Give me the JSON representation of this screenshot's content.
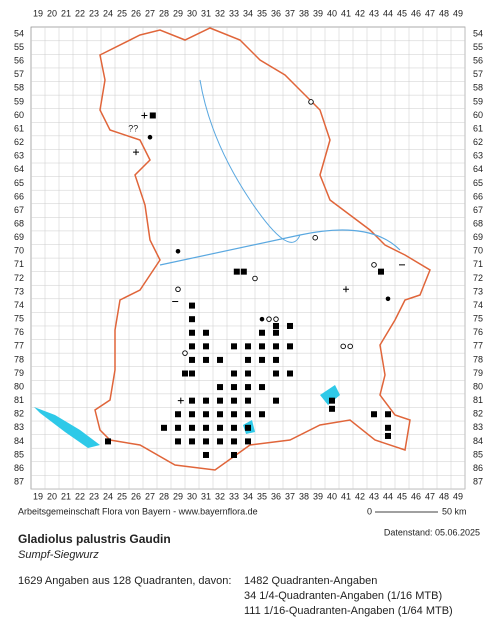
{
  "map": {
    "columns": [
      19,
      20,
      21,
      22,
      23,
      24,
      25,
      26,
      27,
      28,
      29,
      30,
      31,
      32,
      33,
      34,
      35,
      36,
      37,
      38,
      39,
      40,
      41,
      42,
      43,
      44,
      45,
      46,
      47,
      48,
      49
    ],
    "rows": [
      54,
      55,
      56,
      57,
      58,
      59,
      60,
      61,
      62,
      63,
      64,
      65,
      66,
      67,
      68,
      69,
      70,
      71,
      72,
      73,
      74,
      75,
      76,
      77,
      78,
      79,
      80,
      81,
      82,
      83,
      84,
      85,
      86,
      87
    ],
    "squares": [
      [
        27.2,
        60
      ],
      [
        33.2,
        71.5
      ],
      [
        33.7,
        71.5
      ],
      [
        43.5,
        71.5
      ],
      [
        30,
        74
      ],
      [
        30,
        75
      ],
      [
        36,
        75.5
      ],
      [
        30,
        76
      ],
      [
        31,
        76
      ],
      [
        35,
        76
      ],
      [
        36,
        76
      ],
      [
        37,
        75.5
      ],
      [
        30,
        77
      ],
      [
        31,
        77
      ],
      [
        33,
        77
      ],
      [
        34,
        77
      ],
      [
        35,
        77
      ],
      [
        36,
        77
      ],
      [
        37,
        77
      ],
      [
        30,
        78
      ],
      [
        31,
        78
      ],
      [
        32,
        78
      ],
      [
        34,
        78
      ],
      [
        35,
        78
      ],
      [
        36,
        78
      ],
      [
        37,
        79
      ],
      [
        29.5,
        79
      ],
      [
        30,
        79
      ],
      [
        33,
        79
      ],
      [
        34,
        79
      ],
      [
        36,
        79
      ],
      [
        32,
        80
      ],
      [
        33,
        80
      ],
      [
        34,
        80
      ],
      [
        35,
        80
      ],
      [
        30,
        81
      ],
      [
        31,
        81
      ],
      [
        32,
        81
      ],
      [
        33,
        81
      ],
      [
        34,
        81
      ],
      [
        36,
        81
      ],
      [
        40,
        81
      ],
      [
        29,
        82
      ],
      [
        30,
        82
      ],
      [
        31,
        82
      ],
      [
        32,
        82
      ],
      [
        33,
        82
      ],
      [
        34,
        82
      ],
      [
        35,
        82
      ],
      [
        40,
        81.6
      ],
      [
        43,
        82
      ],
      [
        44,
        82
      ],
      [
        28,
        83
      ],
      [
        29,
        83
      ],
      [
        30,
        83
      ],
      [
        31,
        83
      ],
      [
        32,
        83
      ],
      [
        33,
        83
      ],
      [
        34,
        83
      ],
      [
        44,
        83
      ],
      [
        24,
        84
      ],
      [
        29,
        84
      ],
      [
        30,
        84
      ],
      [
        31,
        84
      ],
      [
        32,
        84
      ],
      [
        33,
        84
      ],
      [
        34,
        84
      ],
      [
        44,
        83.6
      ],
      [
        31,
        85
      ],
      [
        33,
        85
      ]
    ],
    "dots": [
      [
        27,
        61.6
      ],
      [
        29,
        70
      ],
      [
        44,
        73.5
      ],
      [
        35,
        75
      ]
    ],
    "circles": [
      [
        38.5,
        59
      ],
      [
        38.8,
        69
      ],
      [
        29,
        72.8
      ],
      [
        34.5,
        72
      ],
      [
        43,
        71
      ],
      [
        35.5,
        75
      ],
      [
        36,
        75
      ],
      [
        40.8,
        77
      ],
      [
        41.3,
        77
      ],
      [
        29.5,
        77.5
      ]
    ],
    "pluses": [
      [
        26.6,
        60
      ],
      [
        26,
        62.7
      ],
      [
        41,
        72.8
      ],
      [
        29.2,
        81
      ],
      [
        31,
        81
      ]
    ],
    "minuses": [
      [
        28.8,
        73.7
      ],
      [
        45,
        71
      ]
    ],
    "question": {
      "col": 25.8,
      "row": 61,
      "label": "??"
    }
  },
  "footer": {
    "credit": "Arbeitsgemeinschaft Flora von Bayern - www.bayernflora.de",
    "scale_start": "0",
    "scale_end": "50 km",
    "date": "Datenstand: 05.06.2025",
    "species": "Gladiolus palustris Gaudin",
    "common_name": "Sumpf-Siegwurz",
    "summary": "1629 Angaben aus 128 Quadranten, davon:",
    "stats": [
      "1482 Quadranten-Angaben",
      "34 1/4-Quadranten-Angaben (1/16 MTB)",
      "111 1/16-Quadranten-Angaben (1/64 MTB)"
    ]
  }
}
